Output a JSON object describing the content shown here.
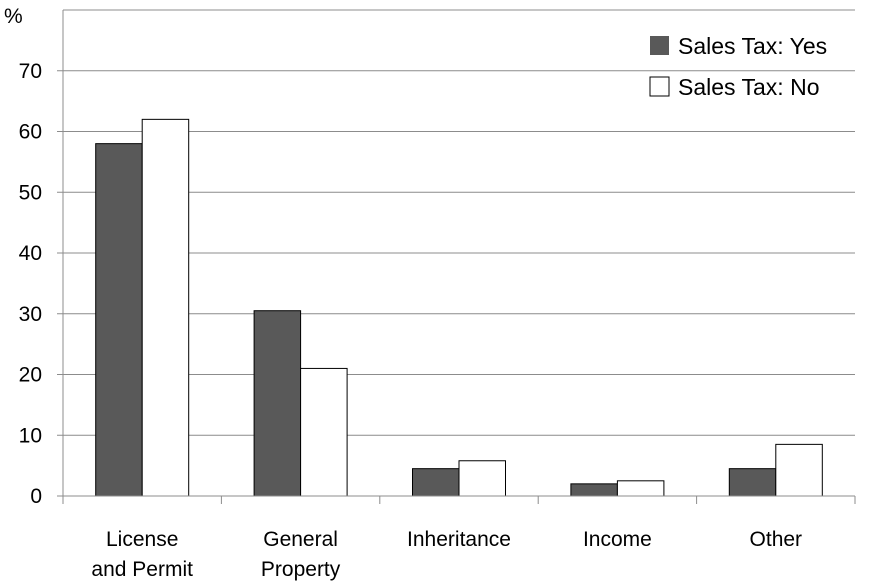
{
  "chart_data": {
    "type": "bar",
    "ylabel": "%",
    "ylim": [
      0,
      80
    ],
    "yticks": [
      0,
      10,
      20,
      30,
      40,
      50,
      60,
      70
    ],
    "grid": true,
    "legend_position": "top-right",
    "categories": [
      [
        "License",
        "and Permit"
      ],
      [
        "General",
        "Property"
      ],
      [
        "Inheritance"
      ],
      [
        "Income"
      ],
      [
        "Other"
      ]
    ],
    "series": [
      {
        "name": "Sales Tax: Yes",
        "color": "#595959",
        "values": [
          58,
          30.5,
          4.5,
          2,
          4.5
        ]
      },
      {
        "name": "Sales Tax: No",
        "color": "#ffffff",
        "values": [
          62,
          21,
          5.8,
          2.5,
          8.5
        ]
      }
    ]
  }
}
